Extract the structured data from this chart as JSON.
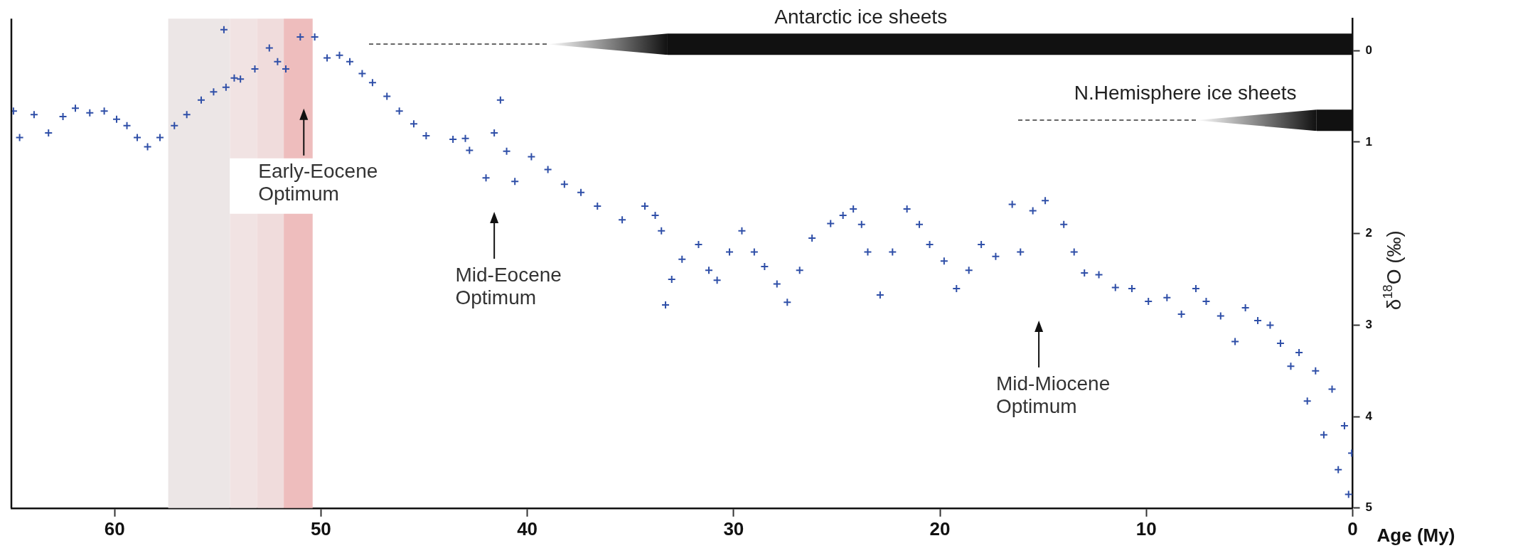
{
  "chart_data": {
    "type": "scatter",
    "xlabel": "Age (My)",
    "ylabel": "δ$^{18}$O (‰)",
    "xlim": [
      65,
      0
    ],
    "xticks": [
      60,
      50,
      40,
      30,
      20,
      10,
      0
    ],
    "ylim": [
      5,
      -0.35
    ],
    "yticks": [
      0,
      1,
      2,
      3,
      4,
      5
    ],
    "marker": "cross",
    "x": [
      64.9,
      64.6,
      63.9,
      63.2,
      62.5,
      61.9,
      61.2,
      60.5,
      59.9,
      59.4,
      58.9,
      58.4,
      57.8,
      57.1,
      56.5,
      55.8,
      55.2,
      54.7,
      54.6,
      54.2,
      53.9,
      53.2,
      52.5,
      52.1,
      51.7,
      51.0,
      50.3,
      49.7,
      49.1,
      48.6,
      48.0,
      47.5,
      46.8,
      46.2,
      45.5,
      44.9,
      43.6,
      43.0,
      42.8,
      42.0,
      41.6,
      41.3,
      41.0,
      40.6,
      39.8,
      39.0,
      38.2,
      37.4,
      36.6,
      35.4,
      34.3,
      33.8,
      33.5,
      33.3,
      33.0,
      32.5,
      31.7,
      31.2,
      30.8,
      30.2,
      29.6,
      29.0,
      28.5,
      27.9,
      27.4,
      26.8,
      26.2,
      25.3,
      24.7,
      24.2,
      23.8,
      23.5,
      22.9,
      22.3,
      21.6,
      21.0,
      20.5,
      19.8,
      19.2,
      18.6,
      18.0,
      17.3,
      16.5,
      16.1,
      15.5,
      14.9,
      14.0,
      13.5,
      13.0,
      12.3,
      11.5,
      10.7,
      9.9,
      9.0,
      8.3,
      7.6,
      7.1,
      6.4,
      5.7,
      5.2,
      4.6,
      4.0,
      3.5,
      3.0,
      2.6,
      2.2,
      1.8,
      1.4,
      1.0,
      0.7,
      0.4,
      0.2,
      0.05
    ],
    "series": [
      {
        "color": "#2f4fa8",
        "values": [
          0.66,
          0.95,
          0.7,
          0.9,
          0.72,
          0.63,
          0.68,
          0.66,
          0.75,
          0.82,
          0.95,
          1.05,
          0.95,
          0.82,
          0.7,
          0.54,
          0.45,
          -0.23,
          0.4,
          0.3,
          0.31,
          0.2,
          -0.03,
          0.12,
          0.2,
          -0.15,
          -0.15,
          0.08,
          0.05,
          0.12,
          0.25,
          0.35,
          0.5,
          0.66,
          0.8,
          0.93,
          0.97,
          0.96,
          1.09,
          1.39,
          0.9,
          0.54,
          1.1,
          1.43,
          1.16,
          1.3,
          1.46,
          1.55,
          1.7,
          1.85,
          1.7,
          1.8,
          1.97,
          2.78,
          2.5,
          2.28,
          2.12,
          2.4,
          2.51,
          2.2,
          1.97,
          2.2,
          2.36,
          2.55,
          2.75,
          2.4,
          2.05,
          1.89,
          1.8,
          1.73,
          1.9,
          2.2,
          2.67,
          2.2,
          1.73,
          1.9,
          2.12,
          2.3,
          2.6,
          2.4,
          2.12,
          2.25,
          1.68,
          2.2,
          1.75,
          1.64,
          1.9,
          2.2,
          2.43,
          2.45,
          2.59,
          2.6,
          2.74,
          2.7,
          2.88,
          2.6,
          2.74,
          2.9,
          3.18,
          2.81,
          2.95,
          3.0,
          3.2,
          3.45,
          3.3,
          3.83,
          3.5,
          4.2,
          3.7,
          4.58,
          4.1,
          4.85,
          4.4
        ]
      }
    ],
    "bands": [
      {
        "axis": "x",
        "from": 57.4,
        "to": 54.4,
        "color": "#ece6e6"
      },
      {
        "axis": "x",
        "from": 54.4,
        "to": 53.1,
        "color": "#f1e3e3"
      },
      {
        "axis": "x",
        "from": 53.1,
        "to": 51.8,
        "color": "#f0dcdc"
      },
      {
        "axis": "x",
        "from": 51.8,
        "to": 50.4,
        "color": "#eebdbd"
      },
      {
        "axis": "x",
        "from": 33.2,
        "to": 0,
        "label": "Antarctic ice sheets",
        "color": "#111111"
      },
      {
        "axis": "x",
        "from": 1.75,
        "to": 0,
        "label": "N.Hemisphere ice sheets",
        "color": "#111111"
      }
    ],
    "annotations": [
      "Early-Eocene Optimum",
      "Mid-Eocene Optimum",
      "Mid-Miocene Optimum"
    ]
  }
}
